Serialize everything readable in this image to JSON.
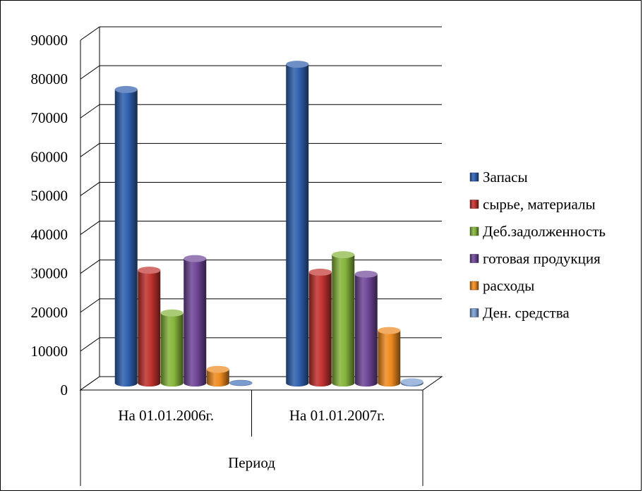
{
  "chart_data": {
    "type": "bar",
    "style": "3d-clustered-cylinder",
    "categories": [
      "На 01.01.2006г.",
      "На 01.01.2007г."
    ],
    "group_label": "Период",
    "series": [
      {
        "name": "Запасы",
        "color": "#2E5FAE",
        "values": [
          75500,
          82000
        ]
      },
      {
        "name": " сырье, материалы",
        "color": "#C0312D",
        "values": [
          29000,
          28500
        ]
      },
      {
        "name": "Деб.задолженность",
        "color": "#86B43A",
        "values": [
          18000,
          33000
        ]
      },
      {
        "name": "готовая продукция",
        "color": "#6E4597",
        "values": [
          32000,
          28000
        ]
      },
      {
        "name": "расходы",
        "color": "#EE8A1E",
        "values": [
          3500,
          13500
        ]
      },
      {
        "name": "Ден. средства",
        "color": "#7A9CD0",
        "values": [
          150,
          300
        ]
      }
    ],
    "yticks": [
      "0",
      "10000",
      "20000",
      "30000",
      "40000",
      "50000",
      "60000",
      "70000",
      "80000",
      "90000"
    ],
    "ylim": [
      0,
      90000
    ],
    "grid": true,
    "legend_position": "right"
  }
}
